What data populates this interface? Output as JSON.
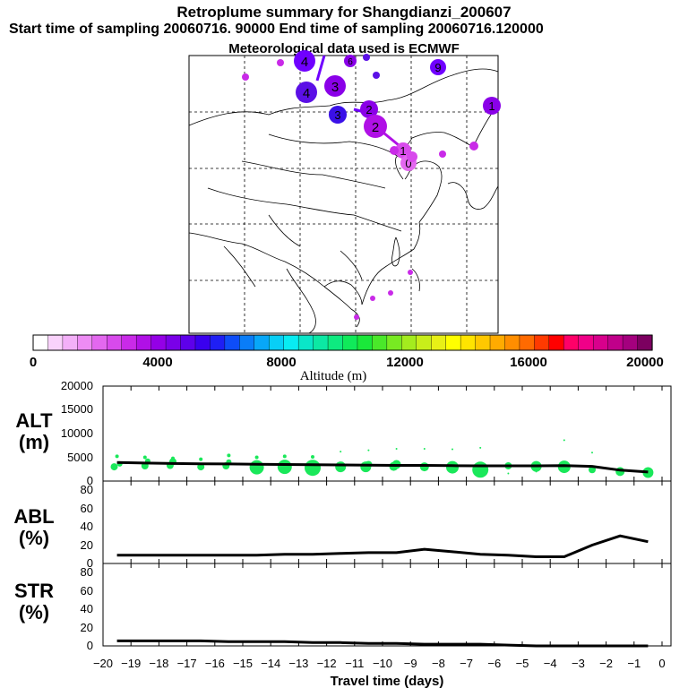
{
  "header": {
    "title": "Retroplume summary for Shangdianzi_200607",
    "sampling_line": "Start time of sampling 20060716. 90000     End time of sampling 20060716.120000",
    "met_line": "Meteorological data used is ECMWF"
  },
  "colorbar": {
    "label": "Altitude (m)",
    "ticks": [
      "0",
      "4000",
      "8000",
      "12000",
      "16000",
      "20000"
    ],
    "colors": [
      "#ffffff",
      "#f9d2fb",
      "#f3b0f8",
      "#ed8cf4",
      "#e368ef",
      "#d84aec",
      "#c92ae8",
      "#b010e6",
      "#9400e6",
      "#7a00e8",
      "#5e00ea",
      "#3a00ee",
      "#1f1ff4",
      "#0e4df8",
      "#0a7df8",
      "#08a7f8",
      "#08cff6",
      "#08ecf2",
      "#0ae6c8",
      "#0ce8a4",
      "#0eea80",
      "#10ea5a",
      "#1ae83a",
      "#4ae82a",
      "#78ea22",
      "#a4ec1e",
      "#c8ee1a",
      "#e8f016",
      "#ffff00",
      "#ffe400",
      "#ffc800",
      "#ffab00",
      "#ff8e00",
      "#ff6a00",
      "#ff3a00",
      "#ff0000",
      "#ff0068",
      "#f00088",
      "#d8008c",
      "#c0008a",
      "#a4007e",
      "#7c0060"
    ]
  },
  "map": {
    "labels": [
      {
        "t": "4",
        "c": "#7000ff",
        "s": "big"
      },
      {
        "t": "4",
        "c": "#5b10e6",
        "s": "big"
      },
      {
        "t": "3",
        "c": "#8a00e8",
        "s": "big"
      },
      {
        "t": "2",
        "c": "#8a00e8",
        "s": "mid"
      },
      {
        "t": "2",
        "c": "#b010e6",
        "s": "big"
      },
      {
        "t": "3",
        "c": "#3a10e8",
        "s": "mid"
      },
      {
        "t": "1",
        "c": "#8a00e8",
        "s": "mid"
      },
      {
        "t": "9",
        "c": "#7000ff",
        "s": "mid"
      },
      {
        "t": "6",
        "c": "#8a00e8",
        "s": "small"
      },
      {
        "t": "1",
        "c": "#d84aec",
        "s": "mid"
      },
      {
        "t": "0",
        "c": "#e368ef",
        "s": "mid"
      }
    ]
  },
  "panels": {
    "alt": {
      "label1": "ALT",
      "label2": "(m)",
      "ticks": [
        "0",
        "5000",
        "10000",
        "15000",
        "20000"
      ]
    },
    "abl": {
      "label1": "ABL",
      "label2": "(%)",
      "ticks": [
        "0",
        "20",
        "40",
        "60",
        "80"
      ]
    },
    "str": {
      "label1": "STR",
      "label2": "(%)",
      "ticks": [
        "0",
        "20",
        "40",
        "60",
        "80"
      ]
    },
    "xticks": [
      "−20",
      "−19",
      "−18",
      "−17",
      "−16",
      "−15",
      "−14",
      "−13",
      "−12",
      "−11",
      "−10",
      "−9",
      "−8",
      "−7",
      "−6",
      "−5",
      "−4",
      "−3",
      "−2",
      "−1",
      "0"
    ],
    "xlabel": "Travel time (days)"
  },
  "chart_data": [
    {
      "type": "line",
      "title": "ALT (m)",
      "xlabel": "Travel time (days)",
      "ylabel": "ALT (m)",
      "xlim": [
        -20,
        0
      ],
      "ylim": [
        0,
        20000
      ],
      "x": [
        -19.5,
        -18.5,
        -17.5,
        -16.5,
        -15.5,
        -14.5,
        -13.5,
        -12.5,
        -11.5,
        -10.5,
        -9.5,
        -8.5,
        -7.5,
        -6.5,
        -5.5,
        -4.5,
        -3.5,
        -2.5,
        -1.5,
        -0.5
      ],
      "series": [
        {
          "name": "mean altitude",
          "values": [
            3900,
            3800,
            3700,
            3650,
            3600,
            3550,
            3500,
            3450,
            3400,
            3350,
            3300,
            3300,
            3250,
            3200,
            3200,
            3200,
            3250,
            3100,
            2300,
            1900
          ]
        }
      ],
      "scatter": {
        "x": [
          -19.6,
          -19.4,
          -18.5,
          -18.4,
          -17.6,
          -17.5,
          -16.5,
          -15.6,
          -15.5,
          -14.5,
          -13.5,
          -12.5,
          -11.5,
          -10.6,
          -10.5,
          -9.6,
          -9.5,
          -8.5,
          -7.5,
          -6.5,
          -5.5,
          -4.5,
          -3.5,
          -2.5,
          -1.5,
          -0.5,
          -19.5,
          -18.5,
          -17.5,
          -16.5,
          -15.5,
          -14.5,
          -13.5,
          -12.5,
          -11.5,
          -10.5,
          -9.5,
          -8.5,
          -7.5,
          -6.5,
          -5.5,
          -4.5,
          -3.5,
          -2.5
        ],
        "y": [
          3000,
          3600,
          3200,
          4200,
          3300,
          4100,
          3000,
          3200,
          4000,
          2900,
          3000,
          2800,
          3000,
          3000,
          3500,
          3100,
          3500,
          3000,
          2900,
          2400,
          3200,
          3100,
          3000,
          2400,
          2000,
          1800,
          5200,
          5000,
          4800,
          4600,
          5400,
          5000,
          5200,
          5100,
          6200,
          6500,
          6800,
          6800,
          6700,
          7000,
          1600,
          2000,
          8600,
          6000
        ],
        "size": [
          4,
          3,
          4,
          3,
          4,
          4,
          4,
          4,
          3,
          8,
          8,
          9,
          6,
          6,
          4,
          5,
          5,
          5,
          7,
          9,
          4,
          6,
          7,
          4,
          5,
          6,
          2,
          2,
          2,
          2,
          2,
          2,
          2,
          2,
          1,
          1,
          1,
          1,
          1,
          1,
          1,
          1,
          1,
          1
        ]
      }
    },
    {
      "type": "line",
      "title": "ABL (%)",
      "xlabel": "Travel time (days)",
      "ylabel": "ABL (%)",
      "xlim": [
        -20,
        0
      ],
      "ylim": [
        0,
        90
      ],
      "x": [
        -19.5,
        -18.5,
        -17.5,
        -16.5,
        -15.5,
        -14.5,
        -13.5,
        -12.5,
        -11.5,
        -10.5,
        -9.5,
        -8.5,
        -7.5,
        -6.5,
        -5.5,
        -4.5,
        -3.5,
        -2.5,
        -1.5,
        -0.5
      ],
      "series": [
        {
          "name": "ABL fraction",
          "values": [
            10,
            10,
            10,
            10,
            10,
            10,
            11,
            11,
            12,
            13,
            13,
            17,
            14,
            11,
            10,
            8,
            8,
            22,
            33,
            26
          ]
        }
      ]
    },
    {
      "type": "line",
      "title": "STR (%)",
      "xlabel": "Travel time (days)",
      "ylabel": "STR (%)",
      "xlim": [
        -20,
        0
      ],
      "ylim": [
        0,
        90
      ],
      "x": [
        -19.5,
        -18.5,
        -17.5,
        -16.5,
        -15.5,
        -14.5,
        -13.5,
        -12.5,
        -11.5,
        -10.5,
        -9.5,
        -8.5,
        -7.5,
        -6.5,
        -5.5,
        -4.5,
        -3.5,
        -2.5,
        -1.5,
        -0.5
      ],
      "series": [
        {
          "name": "stratospheric fraction",
          "values": [
            6,
            6,
            6,
            6,
            5,
            5,
            5,
            4,
            4,
            3,
            3,
            2,
            2,
            2,
            1,
            0,
            0,
            0,
            0,
            0
          ]
        }
      ]
    }
  ]
}
